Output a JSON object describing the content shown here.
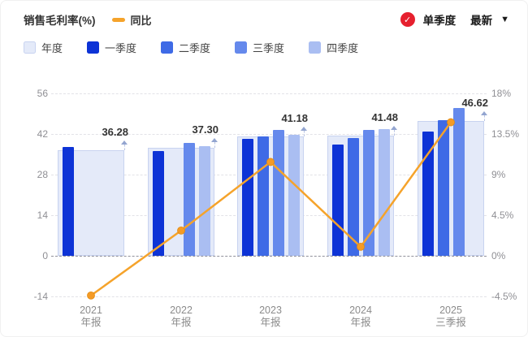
{
  "header": {
    "title": "销售毛利率(%)",
    "line_legend": "同比",
    "check_icon": "✓",
    "toggle_label": "单季度",
    "latest_label": "最新",
    "dropdown_icon": "▼",
    "badge_color": "#e6202e"
  },
  "legend": {
    "items": [
      {
        "label": "年度",
        "color": "#e4eaf9",
        "border": "#c8d3f0"
      },
      {
        "label": "一季度",
        "color": "#0d33d6",
        "border": "#0d33d6"
      },
      {
        "label": "二季度",
        "color": "#3e6ae6",
        "border": "#3e6ae6"
      },
      {
        "label": "三季度",
        "color": "#6589ec",
        "border": "#6589ec"
      },
      {
        "label": "四季度",
        "color": "#aabef2",
        "border": "#aabef2"
      }
    ]
  },
  "chart_data": {
    "type": "bar",
    "title": "销售毛利率(%)",
    "left_axis": {
      "ticks": [
        56,
        42,
        28,
        14,
        0,
        -14
      ],
      "range": [
        -14,
        56
      ]
    },
    "right_axis": {
      "ticks": [
        "18%",
        "13.5%",
        "9%",
        "4.5%",
        "0%",
        "-4.5%"
      ],
      "range": [
        -4.5,
        18
      ]
    },
    "grid": "dashed horizontal",
    "groups": [
      {
        "year": "2021",
        "period": "年报",
        "annual": 36.28,
        "annual_label": "36.28",
        "quarters": [
          37.4,
          null,
          null,
          null
        ]
      },
      {
        "year": "2022",
        "period": "年报",
        "annual": 37.3,
        "annual_label": "37.30",
        "quarters": [
          36.0,
          null,
          39.0,
          37.8
        ]
      },
      {
        "year": "2023",
        "period": "年报",
        "annual": 41.18,
        "annual_label": "41.18",
        "quarters": [
          40.3,
          41.2,
          43.3,
          41.6
        ]
      },
      {
        "year": "2024",
        "period": "年报",
        "annual": 41.48,
        "annual_label": "41.48",
        "quarters": [
          38.4,
          40.6,
          43.5,
          43.7
        ]
      },
      {
        "year": "2025",
        "period": "三季报",
        "annual": 46.62,
        "annual_label": "46.62",
        "quarters": [
          42.9,
          46.7,
          51.1,
          null
        ]
      }
    ],
    "line": {
      "name": "同比",
      "axis": "right",
      "values_pct": [
        -4.4,
        2.8,
        10.4,
        1.0,
        14.8
      ],
      "color": "#f5a32b",
      "marker_color": "#f59b25"
    }
  }
}
